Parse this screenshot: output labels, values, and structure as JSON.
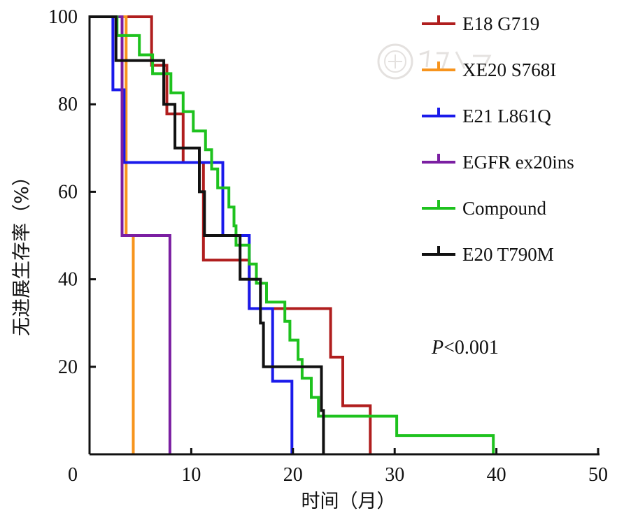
{
  "chart_data": {
    "type": "line",
    "subtype": "kaplan-meier-step",
    "xlabel": "时间（月）",
    "ylabel": "无进展生存率（%）",
    "xlim": [
      0,
      50
    ],
    "ylim": [
      0,
      100
    ],
    "xticks": [
      0,
      10,
      20,
      30,
      40,
      50
    ],
    "yticks": [
      20,
      40,
      60,
      80,
      100
    ],
    "grid": false,
    "legend_position": "top-right",
    "annotation": "<0.001",
    "annotation_prefix": "P",
    "series": [
      {
        "name": "E18 G719",
        "color": "#b01e1e",
        "points": [
          [
            0,
            100
          ],
          [
            6.1,
            100
          ],
          [
            6.1,
            88.9
          ],
          [
            7.6,
            88.9
          ],
          [
            7.6,
            77.8
          ],
          [
            9.2,
            77.8
          ],
          [
            9.2,
            66.7
          ],
          [
            11.2,
            66.7
          ],
          [
            11.2,
            44.4
          ],
          [
            15.7,
            44.4
          ],
          [
            15.7,
            33.3
          ],
          [
            23.7,
            33.3
          ],
          [
            23.7,
            22.2
          ],
          [
            24.9,
            22.2
          ],
          [
            24.9,
            11.1
          ],
          [
            27.6,
            11.1
          ],
          [
            27.6,
            0
          ]
        ]
      },
      {
        "name": "XE20 S768I",
        "color": "#f7941d",
        "points": [
          [
            0,
            100
          ],
          [
            3.6,
            100
          ],
          [
            3.6,
            50
          ],
          [
            4.3,
            50
          ],
          [
            4.3,
            0
          ]
        ]
      },
      {
        "name": "E21 L861Q",
        "color": "#1a1aeb",
        "points": [
          [
            0,
            100
          ],
          [
            2.3,
            100
          ],
          [
            2.3,
            83.3
          ],
          [
            3.4,
            83.3
          ],
          [
            3.4,
            66.7
          ],
          [
            13.1,
            66.7
          ],
          [
            13.1,
            50
          ],
          [
            15.7,
            50
          ],
          [
            15.7,
            33.3
          ],
          [
            18,
            33.3
          ],
          [
            18,
            16.7
          ],
          [
            19.9,
            16.7
          ],
          [
            19.9,
            0
          ]
        ]
      },
      {
        "name": "EGFR ex20ins",
        "color": "#7b1fa2",
        "points": [
          [
            0,
            100
          ],
          [
            3.2,
            100
          ],
          [
            3.2,
            50
          ],
          [
            7.9,
            50
          ],
          [
            7.9,
            0
          ]
        ]
      },
      {
        "name": "Compound",
        "color": "#1ec21e",
        "points": [
          [
            0,
            100
          ],
          [
            2.7,
            100
          ],
          [
            2.7,
            95.7
          ],
          [
            4.9,
            95.7
          ],
          [
            4.9,
            91.3
          ],
          [
            6.2,
            91.3
          ],
          [
            6.2,
            87
          ],
          [
            8,
            87
          ],
          [
            8,
            82.6
          ],
          [
            9.2,
            82.6
          ],
          [
            9.2,
            78.3
          ],
          [
            10.2,
            78.3
          ],
          [
            10.2,
            73.9
          ],
          [
            11.4,
            73.9
          ],
          [
            11.4,
            69.6
          ],
          [
            12,
            69.6
          ],
          [
            12,
            65.2
          ],
          [
            12.6,
            65.2
          ],
          [
            12.6,
            60.9
          ],
          [
            13.7,
            60.9
          ],
          [
            13.7,
            56.5
          ],
          [
            14.2,
            56.5
          ],
          [
            14.2,
            52.2
          ],
          [
            14.4,
            52.2
          ],
          [
            14.4,
            47.8
          ],
          [
            15.7,
            47.8
          ],
          [
            15.7,
            43.5
          ],
          [
            16.4,
            43.5
          ],
          [
            16.4,
            39.1
          ],
          [
            17.4,
            39.1
          ],
          [
            17.4,
            34.8
          ],
          [
            19.2,
            34.8
          ],
          [
            19.2,
            30.4
          ],
          [
            19.7,
            30.4
          ],
          [
            19.7,
            26.1
          ],
          [
            20.5,
            26.1
          ],
          [
            20.5,
            21.7
          ],
          [
            20.9,
            21.7
          ],
          [
            20.9,
            17.4
          ],
          [
            21.8,
            17.4
          ],
          [
            21.8,
            13
          ],
          [
            22.5,
            13
          ],
          [
            22.5,
            8.7
          ],
          [
            30.2,
            8.7
          ],
          [
            30.2,
            4.3
          ],
          [
            39.7,
            4.3
          ],
          [
            39.7,
            0
          ]
        ]
      },
      {
        "name": "E20 T790M",
        "color": "#111111",
        "points": [
          [
            0,
            100
          ],
          [
            2.6,
            100
          ],
          [
            2.6,
            90
          ],
          [
            7.3,
            90
          ],
          [
            7.3,
            80
          ],
          [
            8.4,
            80
          ],
          [
            8.4,
            70
          ],
          [
            10.8,
            70
          ],
          [
            10.8,
            60
          ],
          [
            11.3,
            60
          ],
          [
            11.3,
            50
          ],
          [
            14.8,
            50
          ],
          [
            14.8,
            40
          ],
          [
            16.8,
            40
          ],
          [
            16.8,
            30
          ],
          [
            17.1,
            30
          ],
          [
            17.1,
            20
          ],
          [
            22.8,
            20
          ],
          [
            22.8,
            10
          ],
          [
            23,
            10
          ],
          [
            23,
            0
          ]
        ]
      }
    ]
  }
}
